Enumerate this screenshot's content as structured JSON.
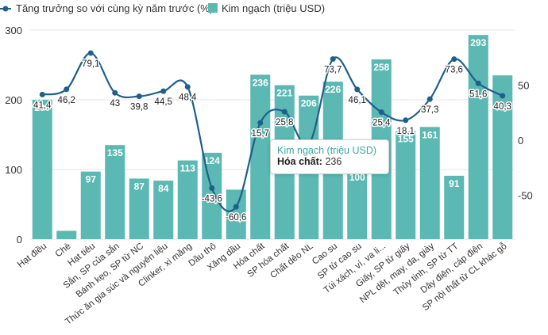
{
  "chart_data": {
    "type": "bar+line",
    "categories": [
      "Hạt điều",
      "Chè",
      "Hạt tiêu",
      "Sắn, SP của sắn",
      "Bánh kẹo, SP từ NC",
      "Thức ăn gia súc và nguyên liệu",
      "Clinker, xi măng",
      "Dầu thô",
      "Xăng dầu",
      "Hóa chất",
      "SP hóa chất",
      "Chất dẻo NL",
      "Cao su",
      "SP từ cao su",
      "Túi xách, ví, va li...",
      "Giấy, SP từ giấy",
      "NPL dệt, may, da, giày",
      "Thủy tinh, SP từ TT",
      "Dây điện, cáp điện",
      "SP nội thất từ CL khác gỗ"
    ],
    "series": [
      {
        "name": "Kim ngạch (triệu USD)",
        "type": "bar",
        "axis": "left",
        "color": "#5bb8b2",
        "values": [
          200,
          12,
          97,
          135,
          87,
          84,
          113,
          124,
          71,
          236,
          221,
          206,
          226,
          100,
          258,
          155,
          161,
          91,
          293,
          235
        ],
        "labels": [
          "200",
          "",
          "97",
          "135",
          "87",
          "84",
          "113",
          "124",
          "",
          "236",
          "221",
          "206",
          "226",
          "100",
          "258",
          "155",
          "161",
          "91",
          "293",
          ""
        ]
      },
      {
        "name": "Tăng trưởng so với cùng kỳ năm trước (%)",
        "type": "line",
        "axis": "right",
        "color": "#1f5f8b",
        "values": [
          41.4,
          46.2,
          79.1,
          43,
          39.8,
          44.5,
          48.4,
          -43.6,
          -60.6,
          15.7,
          25.8,
          -4,
          73.7,
          46.1,
          25.4,
          18.1,
          37.3,
          73.6,
          51.6,
          40.3
        ],
        "labels": [
          "41,4",
          "46,2",
          "79,1",
          "43",
          "39,8",
          "44,5",
          "48,4",
          "-43,6",
          "-60,6",
          "15,7",
          "25,8",
          "-4",
          "73,7",
          "46,1",
          "25,4",
          "18,1",
          "37,3",
          "73,6",
          "51,6",
          "40,3"
        ]
      }
    ],
    "y_left": {
      "ticks": [
        0,
        100,
        200,
        300
      ],
      "range": [
        0,
        300
      ]
    },
    "y_right": {
      "ticks": [
        -50,
        0,
        50
      ],
      "range": [
        -90,
        100
      ]
    },
    "legend": "top-left",
    "grid": true,
    "tooltip": {
      "title": "Kim ngạch (triệu USD)",
      "label": "Hóa chất:",
      "value": "236"
    }
  },
  "colors": {
    "bar": "#5bb8b2",
    "line": "#1f5f8b",
    "grid": "#e6e6e6",
    "legend_line": "#1f5f8b",
    "legend_bar": "#5bb8b2"
  }
}
